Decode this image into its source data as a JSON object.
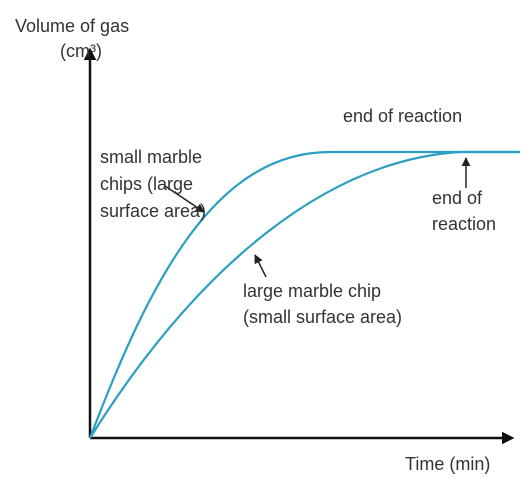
{
  "axes": {
    "y_label": [
      "Volume of gas",
      "(cm³)"
    ],
    "x_label": "Time (min)"
  },
  "annotations": [
    {
      "lines": [
        "small marble",
        "chips (large",
        "surface area)"
      ]
    },
    {
      "lines": [
        "end of reaction"
      ]
    },
    {
      "lines": [
        "end of",
        "reaction"
      ]
    },
    {
      "lines": [
        "large marble chip",
        "(small surface area)"
      ]
    }
  ]
}
